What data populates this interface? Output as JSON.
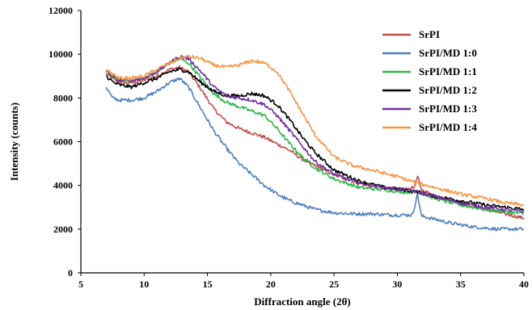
{
  "chart_data": {
    "type": "line",
    "xlabel": "Diffraction angle (2θ)",
    "ylabel": "Intensity (counts)",
    "xlim": [
      5,
      40
    ],
    "ylim": [
      0,
      12000
    ],
    "xticks": [
      5,
      10,
      15,
      20,
      25,
      30,
      35,
      40
    ],
    "yticks": [
      0,
      2000,
      4000,
      6000,
      8000,
      10000,
      12000
    ],
    "grid": false,
    "legend_position": "top-right",
    "series": [
      {
        "name": "SrPI",
        "color": "#c0504d",
        "points": [
          [
            7,
            9100
          ],
          [
            8,
            8700
          ],
          [
            9,
            8700
          ],
          [
            10,
            8800
          ],
          [
            11,
            9000
          ],
          [
            12,
            9300
          ],
          [
            12.8,
            9400
          ],
          [
            13.5,
            9200
          ],
          [
            14.5,
            8400
          ],
          [
            15.5,
            7500
          ],
          [
            16.5,
            6900
          ],
          [
            17.5,
            6600
          ],
          [
            18.5,
            6400
          ],
          [
            19.5,
            6200
          ],
          [
            20.5,
            5900
          ],
          [
            21.5,
            5600
          ],
          [
            22.5,
            5200
          ],
          [
            23.5,
            4900
          ],
          [
            25,
            4500
          ],
          [
            27,
            4100
          ],
          [
            29,
            3900
          ],
          [
            30.5,
            3800
          ],
          [
            31.3,
            3900
          ],
          [
            31.6,
            4400
          ],
          [
            31.9,
            3800
          ],
          [
            33,
            3500
          ],
          [
            35,
            3200
          ],
          [
            37,
            2900
          ],
          [
            38.5,
            2700
          ],
          [
            40,
            2500
          ]
        ]
      },
      {
        "name": "SrPI/MD 1:0",
        "color": "#4f81bd",
        "points": [
          [
            7,
            8500
          ],
          [
            7.5,
            8000
          ],
          [
            8,
            7900
          ],
          [
            9,
            7900
          ],
          [
            10,
            8000
          ],
          [
            11,
            8300
          ],
          [
            12,
            8700
          ],
          [
            12.8,
            8900
          ],
          [
            13.5,
            8500
          ],
          [
            14.5,
            7500
          ],
          [
            15.5,
            6500
          ],
          [
            16.5,
            5700
          ],
          [
            17.5,
            5000
          ],
          [
            18.5,
            4500
          ],
          [
            19.5,
            4000
          ],
          [
            20.5,
            3600
          ],
          [
            21.5,
            3300
          ],
          [
            22.5,
            3100
          ],
          [
            23.5,
            2900
          ],
          [
            25,
            2750
          ],
          [
            26.5,
            2700
          ],
          [
            28,
            2700
          ],
          [
            29.5,
            2650
          ],
          [
            30.5,
            2650
          ],
          [
            31.2,
            2650
          ],
          [
            31.6,
            3600
          ],
          [
            31.9,
            2600
          ],
          [
            33,
            2450
          ],
          [
            34,
            2300
          ],
          [
            35,
            2200
          ],
          [
            36,
            2100
          ],
          [
            37,
            2050
          ],
          [
            38,
            2000
          ],
          [
            39,
            2000
          ],
          [
            40,
            2000
          ]
        ]
      },
      {
        "name": "SrPI/MD 1:1",
        "color": "#2db84d",
        "points": [
          [
            7,
            9200
          ],
          [
            8,
            8800
          ],
          [
            9,
            8800
          ],
          [
            10,
            8900
          ],
          [
            11,
            9200
          ],
          [
            12,
            9600
          ],
          [
            12.8,
            9800
          ],
          [
            13.5,
            9600
          ],
          [
            14.5,
            8900
          ],
          [
            15.5,
            8200
          ],
          [
            16.5,
            7800
          ],
          [
            17.5,
            7600
          ],
          [
            18.5,
            7400
          ],
          [
            19.5,
            7200
          ],
          [
            20.5,
            6600
          ],
          [
            21.5,
            5900
          ],
          [
            22.5,
            5300
          ],
          [
            23.5,
            4800
          ],
          [
            25,
            4300
          ],
          [
            27,
            3900
          ],
          [
            29,
            3800
          ],
          [
            30.5,
            3700
          ],
          [
            31.6,
            3700
          ],
          [
            33,
            3400
          ],
          [
            35,
            3100
          ],
          [
            37,
            2900
          ],
          [
            38.5,
            2800
          ],
          [
            40,
            2700
          ]
        ]
      },
      {
        "name": "SrPI/MD 1:2",
        "color": "#000000",
        "points": [
          [
            7,
            9000
          ],
          [
            7.6,
            8700
          ],
          [
            8,
            8600
          ],
          [
            9,
            8500
          ],
          [
            10,
            8700
          ],
          [
            11,
            8900
          ],
          [
            12,
            9200
          ],
          [
            12.8,
            9300
          ],
          [
            13.5,
            9200
          ],
          [
            14.5,
            8700
          ],
          [
            15.5,
            8300
          ],
          [
            16.5,
            8100
          ],
          [
            17.5,
            8100
          ],
          [
            18.5,
            8200
          ],
          [
            19.5,
            8100
          ],
          [
            20.5,
            7700
          ],
          [
            21.5,
            7000
          ],
          [
            22.5,
            6200
          ],
          [
            23.5,
            5500
          ],
          [
            25,
            4700
          ],
          [
            27,
            4200
          ],
          [
            29,
            3900
          ],
          [
            30.5,
            3800
          ],
          [
            31.6,
            3700
          ],
          [
            33,
            3500
          ],
          [
            35,
            3300
          ],
          [
            37,
            3100
          ],
          [
            38.5,
            3000
          ],
          [
            40,
            2900
          ]
        ]
      },
      {
        "name": "SrPI/MD 1:3",
        "color": "#7030a0",
        "points": [
          [
            7,
            9200
          ],
          [
            8,
            8800
          ],
          [
            9,
            8800
          ],
          [
            10,
            8900
          ],
          [
            11,
            9200
          ],
          [
            12,
            9600
          ],
          [
            12.8,
            9900
          ],
          [
            13.5,
            9800
          ],
          [
            14.5,
            9200
          ],
          [
            15.5,
            8500
          ],
          [
            16.5,
            8100
          ],
          [
            17.5,
            8000
          ],
          [
            18.5,
            7900
          ],
          [
            19.5,
            7700
          ],
          [
            20.5,
            7200
          ],
          [
            21.5,
            6500
          ],
          [
            22.5,
            5800
          ],
          [
            23.5,
            5100
          ],
          [
            25,
            4500
          ],
          [
            27,
            4100
          ],
          [
            29,
            3900
          ],
          [
            30.5,
            3800
          ],
          [
            31.6,
            3700
          ],
          [
            33,
            3500
          ],
          [
            35,
            3200
          ],
          [
            37,
            3000
          ],
          [
            38.5,
            2900
          ],
          [
            40,
            2800
          ]
        ]
      },
      {
        "name": "SrPI/MD 1:4",
        "color": "#f79646",
        "points": [
          [
            7,
            9300
          ],
          [
            8,
            8900
          ],
          [
            9,
            8900
          ],
          [
            10,
            9000
          ],
          [
            11,
            9300
          ],
          [
            12,
            9600
          ],
          [
            12.8,
            9800
          ],
          [
            13.5,
            9900
          ],
          [
            14.5,
            9800
          ],
          [
            15.5,
            9500
          ],
          [
            16.5,
            9400
          ],
          [
            17.5,
            9500
          ],
          [
            18.5,
            9700
          ],
          [
            19.5,
            9600
          ],
          [
            20.5,
            9200
          ],
          [
            21.5,
            8300
          ],
          [
            22.5,
            7300
          ],
          [
            23.5,
            6300
          ],
          [
            25,
            5300
          ],
          [
            26.5,
            4900
          ],
          [
            28,
            4700
          ],
          [
            30,
            4400
          ],
          [
            31.6,
            4100
          ],
          [
            33,
            3900
          ],
          [
            35,
            3600
          ],
          [
            37,
            3400
          ],
          [
            38.5,
            3200
          ],
          [
            40,
            3100
          ]
        ]
      }
    ]
  }
}
